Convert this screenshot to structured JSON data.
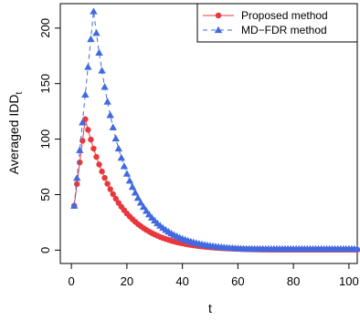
{
  "chart_data": {
    "type": "line",
    "title": "",
    "xlabel": "t",
    "ylabel": "Averaged IDD",
    "ylabel_subscript": "t",
    "xlim": [
      0,
      100
    ],
    "ylim": [
      0,
      220
    ],
    "x_ticks": [
      0,
      20,
      40,
      60,
      80,
      100
    ],
    "y_ticks": [
      0,
      50,
      100,
      150,
      200
    ],
    "x_tick_labels": [
      "0",
      "20",
      "40",
      "60",
      "80",
      "100"
    ],
    "y_tick_labels": [
      "0",
      "50",
      "100",
      "150",
      "200"
    ],
    "legend_position": "top-right",
    "grid": false,
    "series": [
      {
        "name": "Proposed method",
        "color": "#e8383d",
        "marker": "circle",
        "line": "solid",
        "peak": {
          "x": 5,
          "y": 118
        },
        "start": {
          "x": 1,
          "y": 40
        },
        "decay_rate": 0.085
      },
      {
        "name": "MD−FDR method",
        "color": "#4169e1",
        "marker": "triangle",
        "line": "dashed",
        "peak": {
          "x": 8,
          "y": 215
        },
        "start": {
          "x": 1,
          "y": 40
        },
        "decay_rate": 0.095
      }
    ]
  }
}
